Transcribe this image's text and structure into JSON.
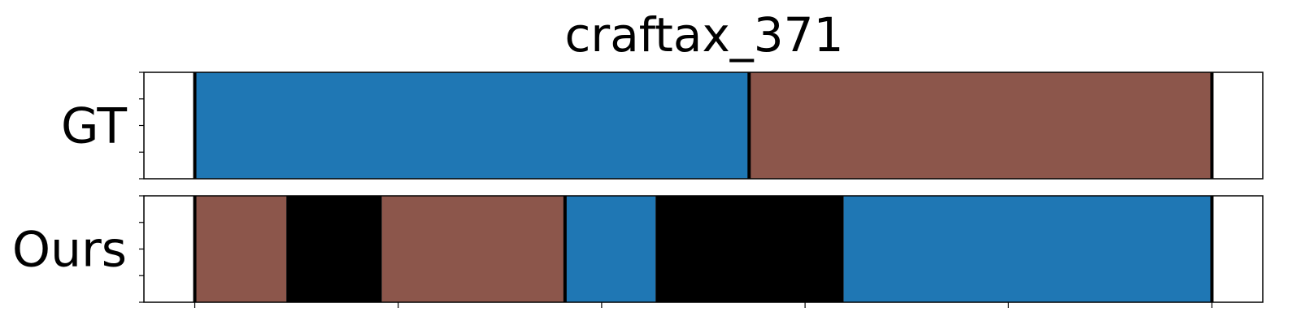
{
  "chart_data": {
    "type": "timeline",
    "title": "craftax_371",
    "xlim": [
      -50,
      1050
    ],
    "rows": [
      {
        "label": "GT",
        "segments": [
          {
            "start": 0,
            "end": 545,
            "color": "#1f77b4"
          },
          {
            "start": 545,
            "end": 1000,
            "color": "#8c564b"
          }
        ],
        "boundaries": [
          0,
          545,
          1000
        ]
      },
      {
        "label": "Ours",
        "segments": [
          {
            "start": 0,
            "end": 90,
            "color": "#8c564b"
          },
          {
            "start": 90,
            "end": 184,
            "color": "#000000"
          },
          {
            "start": 184,
            "end": 364,
            "color": "#8c564b"
          },
          {
            "start": 364,
            "end": 453,
            "color": "#1f77b4"
          },
          {
            "start": 453,
            "end": 638,
            "color": "#000000"
          },
          {
            "start": 638,
            "end": 1000,
            "color": "#1f77b4"
          }
        ],
        "boundaries": [
          0,
          364,
          1000
        ]
      }
    ],
    "x_ticks": [
      0,
      200,
      400,
      600,
      800,
      1000
    ],
    "grid": false,
    "legend": "none"
  }
}
